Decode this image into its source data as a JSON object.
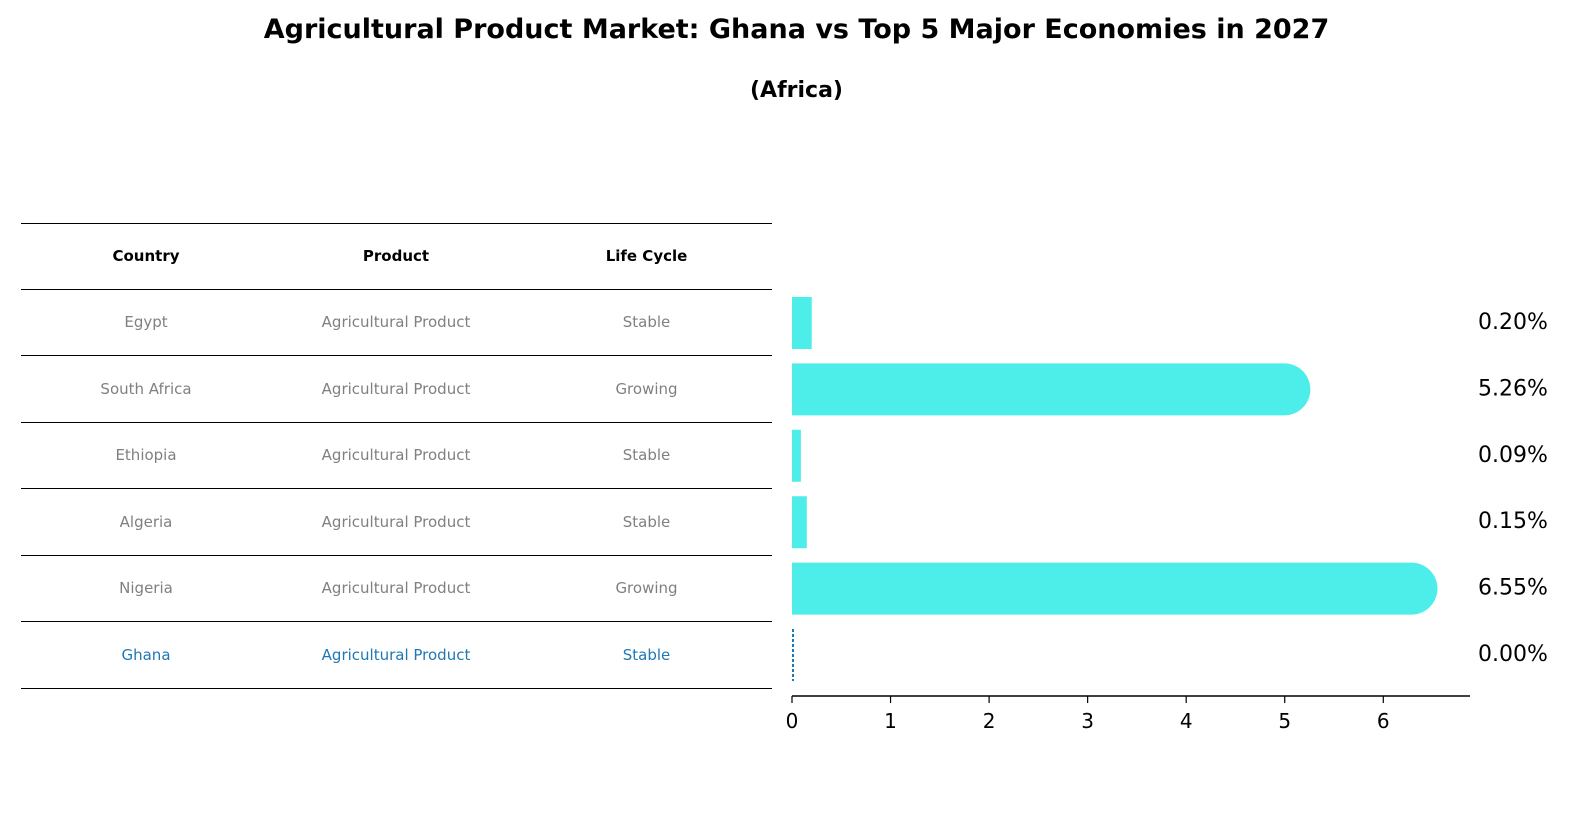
{
  "chart_data": {
    "type": "bar",
    "orientation": "horizontal",
    "title": "Agricultural Product Market: Ghana vs Top 5 Major Economies in 2027",
    "subtitle": "(Africa)",
    "table": {
      "headers": [
        "Country",
        "Product",
        "Life Cycle"
      ],
      "rows": [
        {
          "country": "Egypt",
          "product": "Agricultural Product",
          "life_cycle": "Stable"
        },
        {
          "country": "South Africa",
          "product": "Agricultural Product",
          "life_cycle": "Growing"
        },
        {
          "country": "Ethiopia",
          "product": "Agricultural Product",
          "life_cycle": "Stable"
        },
        {
          "country": "Algeria",
          "product": "Agricultural Product",
          "life_cycle": "Stable"
        },
        {
          "country": "Nigeria",
          "product": "Agricultural Product",
          "life_cycle": "Growing"
        },
        {
          "country": "Ghana",
          "product": "Agricultural Product",
          "life_cycle": "Stable"
        }
      ]
    },
    "categories": [
      "Egypt",
      "South Africa",
      "Ethiopia",
      "Algeria",
      "Nigeria",
      "Ghana"
    ],
    "values": [
      0.2,
      5.26,
      0.09,
      0.15,
      6.55,
      0.0
    ],
    "value_labels": [
      "0.20%",
      "5.26%",
      "0.09%",
      "0.15%",
      "6.55%",
      "0.00%"
    ],
    "highlight": "Ghana",
    "xlim": [
      0,
      6.88
    ],
    "xticks": [
      0,
      1,
      2,
      3,
      4,
      5,
      6
    ],
    "xlabel": "",
    "ylabel": "",
    "grid": false
  },
  "colors": {
    "bar": "#4dede9",
    "highlight_text": "#1f77b4",
    "row_text": "#808080",
    "zero_line": "#1f77b4"
  }
}
